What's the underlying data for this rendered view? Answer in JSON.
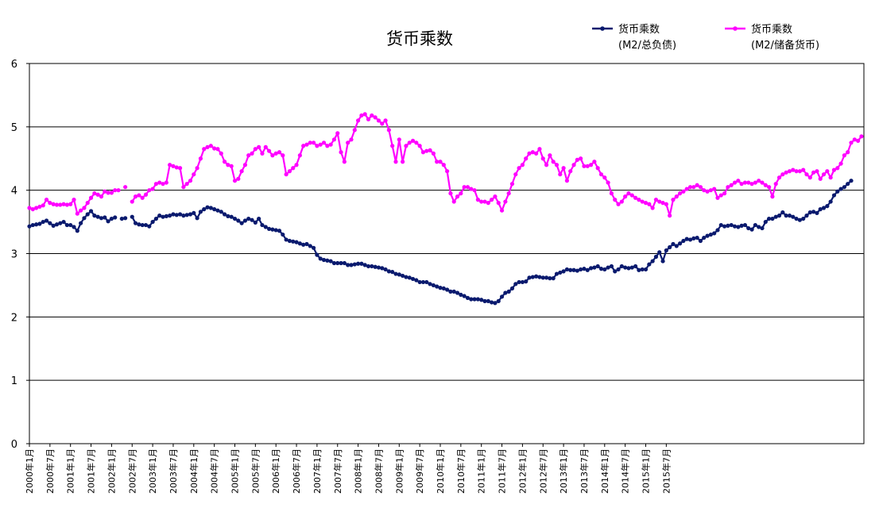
{
  "chart_data": {
    "type": "line",
    "title": "货币乘数",
    "ylim": [
      0,
      6
    ],
    "yticks": [
      "0",
      "1",
      "2",
      "3",
      "4",
      "5",
      "6"
    ],
    "grid": "horizontal",
    "legend_position": "top-right",
    "x_tick_labels": [
      "2000年1月",
      "2000年7月",
      "2001年1月",
      "2001年7月",
      "2002年1月",
      "2002年7月",
      "2003年1月",
      "2003年7月",
      "2004年1月",
      "2004年7月",
      "2005年1月",
      "2005年7月",
      "2006年1月",
      "2006年7月",
      "2007年1月",
      "2007年7月",
      "2008年1月",
      "2008年7月",
      "2009年1月",
      "2009年7月",
      "2010年1月",
      "2010年7月",
      "2011年1月",
      "2011年7月",
      "2012年1月",
      "2012年7月",
      "2013年1月",
      "2013年7月",
      "2014年1月",
      "2014年7月",
      "2015年1月",
      "2015年7月"
    ],
    "series": [
      {
        "name": "货币乘数",
        "name_line2": "(M2/总负债)",
        "color": "#0a1a6e",
        "values": [
          3.43,
          3.45,
          3.46,
          3.47,
          3.5,
          3.52,
          3.48,
          3.44,
          3.46,
          3.48,
          3.5,
          3.45,
          3.45,
          3.42,
          3.36,
          3.48,
          3.56,
          3.62,
          3.67,
          3.6,
          3.58,
          3.56,
          3.57,
          3.51,
          3.55,
          3.57,
          null,
          3.55,
          3.56,
          null,
          3.58,
          3.48,
          3.46,
          3.45,
          3.45,
          3.43,
          3.5,
          3.55,
          3.6,
          3.58,
          3.59,
          3.6,
          3.62,
          3.61,
          3.62,
          3.6,
          3.61,
          3.62,
          3.64,
          3.56,
          3.66,
          3.7,
          3.73,
          3.72,
          3.7,
          3.68,
          3.66,
          3.62,
          3.59,
          3.58,
          3.55,
          3.52,
          3.48,
          3.52,
          3.55,
          3.53,
          3.49,
          3.55,
          3.45,
          3.42,
          3.39,
          3.38,
          3.37,
          3.36,
          3.3,
          3.22,
          3.2,
          3.19,
          3.18,
          3.16,
          3.14,
          3.15,
          3.12,
          3.09,
          2.98,
          2.92,
          2.9,
          2.89,
          2.88,
          2.85,
          2.85,
          2.85,
          2.85,
          2.82,
          2.82,
          2.83,
          2.84,
          2.84,
          2.82,
          2.8,
          2.8,
          2.79,
          2.78,
          2.77,
          2.75,
          2.72,
          2.71,
          2.68,
          2.67,
          2.65,
          2.63,
          2.62,
          2.6,
          2.58,
          2.55,
          2.55,
          2.55,
          2.52,
          2.5,
          2.48,
          2.46,
          2.45,
          2.43,
          2.4,
          2.4,
          2.38,
          2.35,
          2.33,
          2.3,
          2.28,
          2.28,
          2.28,
          2.27,
          2.25,
          2.25,
          2.23,
          2.22,
          2.25,
          2.32,
          2.38,
          2.4,
          2.45,
          2.52,
          2.55,
          2.55,
          2.56,
          2.62,
          2.63,
          2.64,
          2.63,
          2.62,
          2.62,
          2.61,
          2.61,
          2.68,
          2.7,
          2.72,
          2.75,
          2.74,
          2.74,
          2.73,
          2.75,
          2.76,
          2.74,
          2.77,
          2.78,
          2.8,
          2.76,
          2.75,
          2.78,
          2.8,
          2.72,
          2.75,
          2.8,
          2.78,
          2.77,
          2.78,
          2.8,
          2.74,
          2.75,
          2.75,
          2.83,
          2.88,
          2.95,
          3.02,
          2.88,
          3.05,
          3.1,
          3.15,
          3.12,
          3.16,
          3.2,
          3.23,
          3.22,
          3.24,
          3.25,
          3.2,
          3.25,
          3.28,
          3.3,
          3.32,
          3.37,
          3.45,
          3.43,
          3.44,
          3.45,
          3.43,
          3.42,
          3.44,
          3.45,
          3.4,
          3.38,
          3.45,
          3.42,
          3.4,
          3.5,
          3.55,
          3.55,
          3.58,
          3.6,
          3.65,
          3.6,
          3.6,
          3.58,
          3.55,
          3.53,
          3.55,
          3.6,
          3.65,
          3.66,
          3.64,
          3.7,
          3.72,
          3.75,
          3.82,
          3.92,
          3.98,
          4.02,
          4.05,
          4.1,
          4.15
        ]
      },
      {
        "name": "货币乘数",
        "name_line2": "(M2/储备货币)",
        "color": "#ff00ff",
        "values": [
          3.72,
          3.7,
          3.72,
          3.74,
          3.76,
          3.85,
          3.8,
          3.78,
          3.77,
          3.77,
          3.78,
          3.77,
          3.78,
          3.85,
          3.63,
          3.68,
          3.72,
          3.8,
          3.88,
          3.95,
          3.93,
          3.9,
          3.98,
          3.96,
          3.96,
          4.0,
          4.0,
          null,
          4.05,
          null,
          3.82,
          3.9,
          3.92,
          3.88,
          3.93,
          4.0,
          4.02,
          4.1,
          4.12,
          4.1,
          4.12,
          4.4,
          4.38,
          4.36,
          4.35,
          4.05,
          4.1,
          4.15,
          4.25,
          4.35,
          4.5,
          4.65,
          4.68,
          4.7,
          4.66,
          4.65,
          4.58,
          4.45,
          4.4,
          4.38,
          4.15,
          4.18,
          4.3,
          4.4,
          4.55,
          4.58,
          4.65,
          4.68,
          4.58,
          4.68,
          4.62,
          4.55,
          4.58,
          4.6,
          4.55,
          4.25,
          4.3,
          4.35,
          4.4,
          4.55,
          4.7,
          4.72,
          4.75,
          4.75,
          4.7,
          4.72,
          4.75,
          4.7,
          4.72,
          4.8,
          4.9,
          4.6,
          4.45,
          4.75,
          4.8,
          4.95,
          5.1,
          5.18,
          5.2,
          5.12,
          5.18,
          5.15,
          5.1,
          5.05,
          5.1,
          4.95,
          4.7,
          4.45,
          4.8,
          4.45,
          4.7,
          4.75,
          4.78,
          4.75,
          4.7,
          4.6,
          4.62,
          4.63,
          4.58,
          4.45,
          4.45,
          4.4,
          4.3,
          3.95,
          3.82,
          3.9,
          3.95,
          4.05,
          4.05,
          4.02,
          4.0,
          3.85,
          3.82,
          3.82,
          3.8,
          3.85,
          3.9,
          3.8,
          3.68,
          3.82,
          3.95,
          4.1,
          4.25,
          4.35,
          4.4,
          4.5,
          4.58,
          4.6,
          4.58,
          4.65,
          4.5,
          4.4,
          4.55,
          4.45,
          4.4,
          4.25,
          4.35,
          4.15,
          4.3,
          4.4,
          4.48,
          4.5,
          4.38,
          4.38,
          4.4,
          4.45,
          4.35,
          4.25,
          4.2,
          4.12,
          3.95,
          3.85,
          3.78,
          3.82,
          3.9,
          3.95,
          3.92,
          3.88,
          3.85,
          3.82,
          3.8,
          3.78,
          3.72,
          3.85,
          3.82,
          3.8,
          3.78,
          3.6,
          3.85,
          3.9,
          3.95,
          3.98,
          4.02,
          4.05,
          4.05,
          4.08,
          4.05,
          4.0,
          3.98,
          4.0,
          4.02,
          3.88,
          3.92,
          3.95,
          4.05,
          4.08,
          4.12,
          4.15,
          4.1,
          4.12,
          4.12,
          4.1,
          4.12,
          4.15,
          4.12,
          4.08,
          4.05,
          3.9,
          4.1,
          4.2,
          4.25,
          4.28,
          4.3,
          4.32,
          4.3,
          4.3,
          4.32,
          4.25,
          4.2,
          4.28,
          4.3,
          4.18,
          4.25,
          4.3,
          4.2,
          4.32,
          4.35,
          4.42,
          4.55,
          4.6,
          4.75,
          4.8,
          4.78,
          4.85
        ]
      }
    ]
  }
}
